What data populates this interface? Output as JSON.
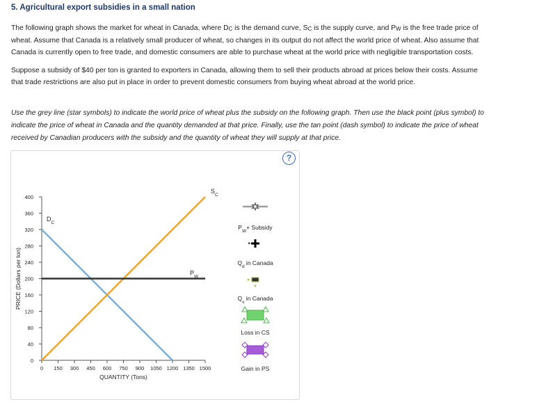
{
  "question": {
    "title": "5. Agricultural export subsidies in a small nation",
    "para1": {
      "t1": "The following graph shows the market for wheat in Canada, where D",
      "s1": "C",
      "t2": " is the demand curve, S",
      "s2": "C",
      "t3": " is the supply curve, and P",
      "s3": "W",
      "t4": " is the free trade price of",
      "line2": "wheat. Assume that Canada is a relatively small producer of wheat, so changes in its output do not affect the world price of wheat. Also assume that",
      "line3": "Canada is currently open to free trade, and domestic consumers are able to purchase wheat at the world price with negligible transportation costs."
    },
    "para2": {
      "line1": "Suppose a subsidy of $40 per ton is granted to exporters in Canada, allowing them to sell their products abroad at prices below their costs. Assume",
      "line2": "that trade restrictions are also put in place in order to prevent domestic consumers from buying wheat abroad at the world price."
    },
    "instructions": {
      "line1": "Use the grey line (star symbols) to indicate the world price of wheat plus the subsidy on the following graph. Then use the black point (plus symbol) to",
      "line2": "indicate the price of wheat in Canada and the quantity demanded at that price. Finally, use the tan point (dash symbol) to indicate the price of wheat",
      "line3": "received by Canadian producers with the subsidy and the quantity of wheat they will supply at that price."
    }
  },
  "help_icon": "?",
  "chart_data": {
    "type": "line",
    "xlabel": "QUANTITY (Tons)",
    "ylabel": "PRICE (Dollars per ton)",
    "xlim": [
      0,
      1500
    ],
    "ylim": [
      0,
      400
    ],
    "x_ticks": [
      0,
      150,
      300,
      450,
      600,
      750,
      900,
      1050,
      1200,
      1350,
      1500
    ],
    "y_ticks": [
      0,
      40,
      80,
      120,
      160,
      200,
      240,
      280,
      320,
      360,
      400
    ],
    "series": [
      {
        "name": "D",
        "name_sub": "C",
        "color": "#7bafd4",
        "points": [
          [
            0,
            320
          ],
          [
            1200,
            0
          ]
        ]
      },
      {
        "name": "S",
        "name_sub": "C",
        "color": "#f5a327",
        "points": [
          [
            0,
            0
          ],
          [
            1500,
            400
          ]
        ]
      },
      {
        "name": "P",
        "name_sub": "W",
        "color": "#333333",
        "points": [
          [
            0,
            200
          ],
          [
            1500,
            200
          ]
        ]
      }
    ]
  },
  "legend": {
    "items": [
      {
        "label": "P",
        "label_sub": "W",
        "label_rest": "+ Subsidy",
        "icon": "grey-line-star",
        "color": "#9e9e9e"
      },
      {
        "label": "Q",
        "label_sub": "d",
        "label_rest": " in Canada",
        "icon": "black-plus",
        "color": "#000000"
      },
      {
        "label": "Q",
        "label_sub": "s",
        "label_rest": " in Canada",
        "icon": "tan-dash",
        "color": "#a8c64e"
      },
      {
        "label": "Loss in CS",
        "label_sub": "",
        "label_rest": "",
        "icon": "green-triangle",
        "color": "#6fd46f"
      },
      {
        "label": "Gain in PS",
        "label_sub": "",
        "label_rest": "",
        "icon": "purple-diamond",
        "color": "#a55cd6"
      }
    ]
  }
}
